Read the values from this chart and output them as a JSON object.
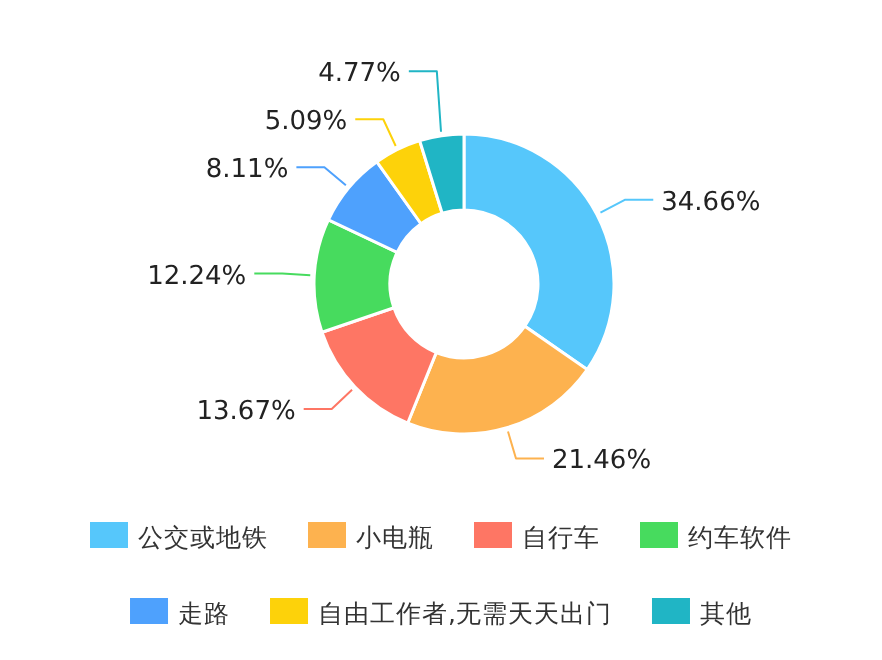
{
  "chart_data": {
    "type": "donut",
    "categories": [
      "公交或地铁",
      "小电瓶",
      "自行车",
      "约车软件",
      "走路",
      "自由工作者,无需天天出门",
      "其他"
    ],
    "values": [
      34.66,
      21.46,
      13.67,
      12.24,
      8.11,
      5.09,
      4.77
    ],
    "colors": [
      "#56c7fb",
      "#fdb24f",
      "#fe7664",
      "#47db5e",
      "#4ea1fd",
      "#fdd20a",
      "#20b5c5"
    ],
    "value_labels": [
      "34.66%",
      "21.46%",
      "13.67%",
      "12.24%",
      "8.11%",
      "5.09%",
      "4.77%"
    ],
    "legend": "bottom"
  }
}
